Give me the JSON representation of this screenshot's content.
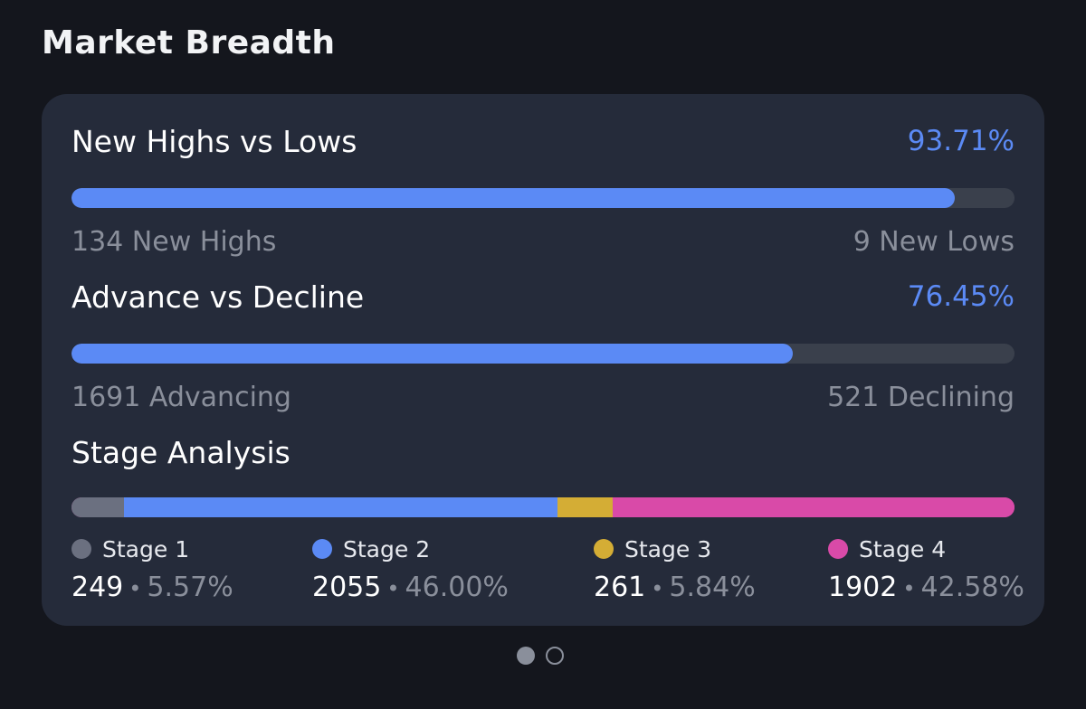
{
  "page": {
    "title": "Market Breadth"
  },
  "highs_lows": {
    "title": "New Highs vs Lows",
    "percent_label": "93.71%",
    "fill_fraction": 0.9371,
    "left_label": "134 New Highs",
    "right_label": "9 New Lows"
  },
  "advance_decline": {
    "title": "Advance vs Decline",
    "percent_label": "76.45%",
    "fill_fraction": 0.7645,
    "left_label": "1691 Advancing",
    "right_label": "521 Declining"
  },
  "stage_analysis": {
    "title": "Stage Analysis",
    "stages": [
      {
        "name": "Stage 1",
        "count": "249",
        "percent": "5.57%",
        "fraction": 0.0557,
        "color": "#6b7080"
      },
      {
        "name": "Stage 2",
        "count": "2055",
        "percent": "46.00%",
        "fraction": 0.46,
        "color": "#5b8af5"
      },
      {
        "name": "Stage 3",
        "count": "261",
        "percent": "5.84%",
        "fraction": 0.0584,
        "color": "#d4ad35"
      },
      {
        "name": "Stage 4",
        "count": "1902",
        "percent": "42.58%",
        "fraction": 0.4258,
        "color": "#d94aa8"
      }
    ]
  },
  "pager": {
    "pages": 2,
    "active_index": 0
  },
  "colors": {
    "accent": "#5b8af5",
    "track": "#3a404c",
    "muted_text": "#8a8f9b"
  }
}
